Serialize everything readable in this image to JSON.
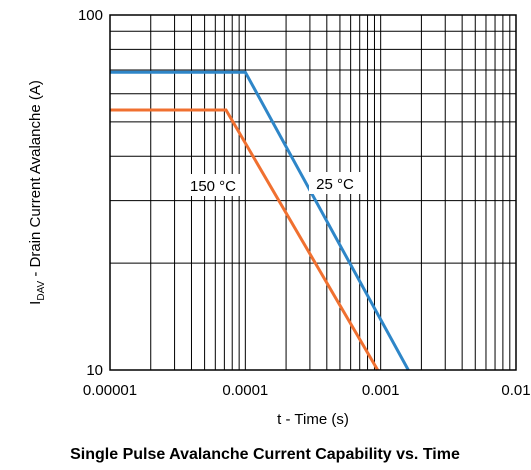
{
  "chart_data": {
    "type": "line",
    "title": "Single Pulse Avalanche Current Capability vs. Time",
    "xlabel": "t - Time (s)",
    "ylabel_main": "I",
    "ylabel_sub": "DAV",
    "ylabel_rest": " - Drain Current Avalanche (A)",
    "x_scale": "log",
    "y_scale": "log",
    "xlim": [
      1e-05,
      0.01
    ],
    "ylim": [
      10,
      100
    ],
    "x_ticks": [
      1e-05,
      0.0001,
      0.001,
      0.01
    ],
    "x_tick_labels": [
      "0.00001",
      "0.0001",
      "0.001",
      "0.01"
    ],
    "y_ticks": [
      10,
      100
    ],
    "y_tick_labels": [
      "10",
      "100"
    ],
    "grid": true,
    "series": [
      {
        "name": "25 °C",
        "color": "#2e86c8",
        "x": [
          1e-05,
          0.0001,
          0.0016
        ],
        "y": [
          69,
          69,
          10
        ]
      },
      {
        "name": "150 °C",
        "color": "#f07030",
        "x": [
          1e-05,
          7.2e-05,
          0.00095
        ],
        "y": [
          54,
          54,
          10
        ]
      }
    ]
  }
}
